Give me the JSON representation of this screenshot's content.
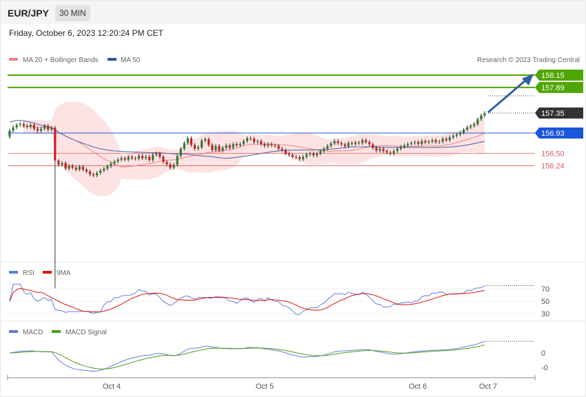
{
  "header": {
    "pair": "EUR/JPY",
    "timeframe": "30 MIN"
  },
  "date_text": "Friday, October 6, 2023 12:20:24 PM CET",
  "legend_main": [
    {
      "label": "MA 20 + Bollinger Bands",
      "color": "#f08080"
    },
    {
      "label": "MA 50",
      "color": "#2f5597"
    }
  ],
  "copyright": "Research © 2023 Trading Central",
  "legend_rsi": [
    {
      "label": "RSI",
      "color": "#5b7fd6"
    },
    {
      "label": "9MA",
      "color": "#dd1111"
    }
  ],
  "legend_macd": [
    {
      "label": "MACD",
      "color": "#5b7fd6"
    },
    {
      "label": "MACD Signal",
      "color": "#4f9a1c"
    }
  ],
  "colors": {
    "up_candle": "#2e7d32",
    "down_candle": "#cc1f1f",
    "bb_fill": "#fde3e3",
    "ma20": "#f08080",
    "ma50": "#4a5ea8",
    "target_green": "#4fa600",
    "resistance_blue": "#1a56db",
    "support_red": "#e05a5a",
    "arrow": "#2f5fa6"
  },
  "chart_data": {
    "type": "candlestick",
    "x_ticks": [
      "Oct 4",
      "Oct 5",
      "Oct 6",
      "Oct 7"
    ],
    "y_range": [
      155.0,
      158.4
    ],
    "levels": [
      {
        "value": 158.15,
        "label": "158.15",
        "kind": "target"
      },
      {
        "value": 157.89,
        "label": "157.89",
        "kind": "target"
      },
      {
        "value": 157.35,
        "label": "157.35",
        "kind": "last_price"
      },
      {
        "value": 156.93,
        "label": "156.93",
        "kind": "pivot"
      },
      {
        "value": 156.5,
        "label": "156.50",
        "kind": "support"
      },
      {
        "value": 156.24,
        "label": "156.24",
        "kind": "support"
      }
    ],
    "closes": [
      156.98,
      157.05,
      157.1,
      157.12,
      157.08,
      157.06,
      157.1,
      157.02,
      156.98,
      157.02,
      157.08,
      157.0,
      157.04,
      156.35,
      156.26,
      156.3,
      156.18,
      156.24,
      156.2,
      156.16,
      156.22,
      156.16,
      156.12,
      156.06,
      156.04,
      156.09,
      156.14,
      156.18,
      156.23,
      156.29,
      156.33,
      156.37,
      156.4,
      156.37,
      156.43,
      156.4,
      156.39,
      156.45,
      156.4,
      156.43,
      156.36,
      156.47,
      156.5,
      156.43,
      156.32,
      156.27,
      156.2,
      156.26,
      156.45,
      156.6,
      156.72,
      156.82,
      156.68,
      156.6,
      156.63,
      156.77,
      156.8,
      156.68,
      156.57,
      156.66,
      156.56,
      156.62,
      156.67,
      156.62,
      156.7,
      156.67,
      156.7,
      156.76,
      156.82,
      156.81,
      156.74,
      156.76,
      156.7,
      156.66,
      156.7,
      156.67,
      156.66,
      156.6,
      156.57,
      156.5,
      156.47,
      156.43,
      156.42,
      156.38,
      156.43,
      156.48,
      156.5,
      156.46,
      156.5,
      156.55,
      156.6,
      156.66,
      156.71,
      156.76,
      156.72,
      156.69,
      156.65,
      156.72,
      156.7,
      156.73,
      156.72,
      156.78,
      156.74,
      156.69,
      156.62,
      156.56,
      156.6,
      156.55,
      156.52,
      156.5,
      156.55,
      156.6,
      156.64,
      156.67,
      156.7,
      156.72,
      156.74,
      156.7,
      156.76,
      156.73,
      156.75,
      156.78,
      156.74,
      156.75,
      156.81,
      156.78,
      156.84,
      156.87,
      156.9,
      156.94,
      157.0,
      157.05,
      157.08,
      157.12,
      157.22,
      157.3,
      157.35
    ],
    "rsi": {
      "levels": [
        70,
        50,
        30
      ],
      "range": [
        20,
        80
      ]
    },
    "macd": {
      "tick_labels": [
        "0",
        "-0"
      ]
    }
  }
}
